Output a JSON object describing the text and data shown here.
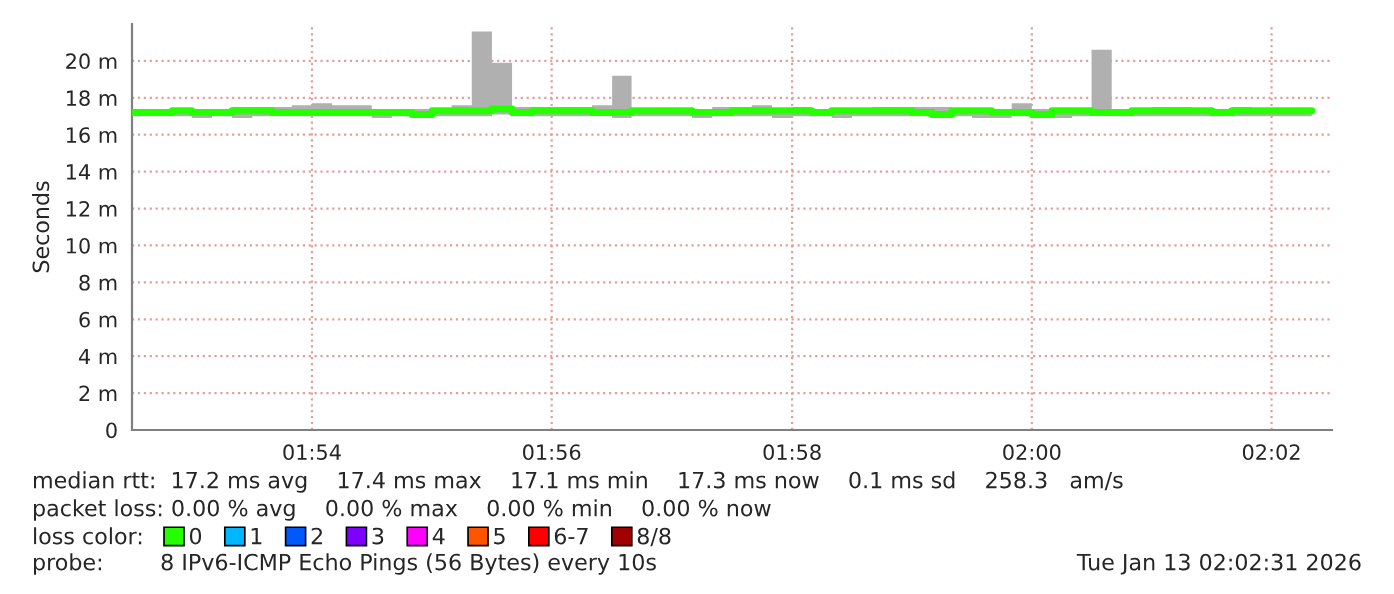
{
  "chart_data": {
    "type": "step",
    "ylabel": "Seconds",
    "legend_title": "loss color:",
    "legend": "bottom",
    "grid": true,
    "xlim": [
      1.875,
      2.0417
    ],
    "ylim": [
      0,
      22
    ],
    "xticks": [
      {
        "value": 1.9,
        "label": "01:54"
      },
      {
        "value": 1.9333,
        "label": "01:56"
      },
      {
        "value": 1.9667,
        "label": "01:58"
      },
      {
        "value": 2.0,
        "label": "02:00"
      },
      {
        "value": 2.0333,
        "label": "02:02"
      }
    ],
    "yticks": [
      0,
      {
        "value": 2,
        "label": "2 m"
      },
      {
        "value": 4,
        "label": "4 m"
      },
      {
        "value": 6,
        "label": "6 m"
      },
      {
        "value": 8,
        "label": "8 m"
      },
      {
        "value": 10,
        "label": "10 m"
      },
      {
        "value": 12,
        "label": "12 m"
      },
      {
        "value": 14,
        "label": "14 m"
      },
      {
        "value": 16,
        "label": "16 m"
      },
      {
        "value": 18,
        "label": "18 m"
      },
      {
        "value": 20,
        "label": "20 m"
      }
    ],
    "x": [
      1.875,
      1.8778,
      1.8806,
      1.8833,
      1.8861,
      1.8889,
      1.8917,
      1.8944,
      1.8972,
      1.9,
      1.9028,
      1.9056,
      1.9083,
      1.9111,
      1.9139,
      1.9167,
      1.9194,
      1.9222,
      1.925,
      1.9278,
      1.9306,
      1.9333,
      1.9361,
      1.9389,
      1.9417,
      1.9444,
      1.9472,
      1.95,
      1.9528,
      1.9556,
      1.9583,
      1.9611,
      1.9639,
      1.9667,
      1.9694,
      1.9722,
      1.975,
      1.9778,
      1.9806,
      1.9833,
      1.9861,
      1.9889,
      1.9917,
      1.9944,
      1.9972,
      2.0,
      2.0028,
      2.0056,
      2.0083,
      2.0111,
      2.0139,
      2.0167,
      2.0194,
      2.0222,
      2.025,
      2.0278,
      2.0306,
      2.0333,
      2.0361,
      2.0389
    ],
    "series": [
      {
        "name": "0",
        "type": "step",
        "color": "#26ff00",
        "lower": [
          17.0,
          17.0,
          17.0,
          16.9,
          17.0,
          16.9,
          17.0,
          17.0,
          17.0,
          17.0,
          17.0,
          17.0,
          16.9,
          17.0,
          17.0,
          17.0,
          17.0,
          17.0,
          17.1,
          17.0,
          17.0,
          17.0,
          17.0,
          17.1,
          16.9,
          17.0,
          17.0,
          17.0,
          16.9,
          17.0,
          17.0,
          17.0,
          16.9,
          17.0,
          17.0,
          16.9,
          17.0,
          17.0,
          17.0,
          17.0,
          17.0,
          17.0,
          16.9,
          16.9,
          17.0,
          17.0,
          16.9,
          17.0,
          17.2,
          17.0,
          17.0,
          17.0,
          17.0,
          17.0,
          17.0,
          17.0,
          17.0,
          17.0,
          17.0,
          17.0
        ],
        "upper": [
          17.3,
          17.4,
          17.4,
          17.4,
          17.4,
          17.5,
          17.5,
          17.5,
          17.6,
          17.7,
          17.6,
          17.6,
          17.4,
          17.4,
          17.4,
          17.3,
          17.6,
          21.6,
          19.9,
          17.5,
          17.5,
          17.5,
          17.5,
          17.6,
          19.2,
          17.4,
          17.4,
          17.4,
          17.3,
          17.5,
          17.5,
          17.6,
          17.4,
          17.5,
          17.4,
          17.3,
          17.4,
          17.5,
          17.5,
          17.5,
          17.5,
          17.4,
          17.4,
          17.4,
          17.7,
          17.4,
          17.4,
          17.4,
          20.6,
          17.3,
          17.4,
          17.5,
          17.5,
          17.4,
          17.3,
          17.5,
          17.4,
          17.3,
          17.4,
          17.3
        ],
        "values": [
          17.2,
          17.2,
          17.3,
          17.2,
          17.2,
          17.3,
          17.3,
          17.2,
          17.2,
          17.2,
          17.2,
          17.2,
          17.2,
          17.2,
          17.1,
          17.3,
          17.3,
          17.3,
          17.4,
          17.2,
          17.3,
          17.3,
          17.3,
          17.2,
          17.2,
          17.3,
          17.3,
          17.3,
          17.2,
          17.2,
          17.3,
          17.3,
          17.3,
          17.3,
          17.2,
          17.3,
          17.3,
          17.3,
          17.3,
          17.2,
          17.1,
          17.3,
          17.3,
          17.2,
          17.2,
          17.1,
          17.3,
          17.3,
          17.2,
          17.2,
          17.3,
          17.3,
          17.3,
          17.3,
          17.2,
          17.3,
          17.3,
          17.3,
          17.3,
          17.3
        ]
      },
      {
        "name": "1",
        "color": "#00b8ff",
        "values": [
          null,
          null,
          null,
          null,
          null,
          null,
          null,
          null,
          null,
          null,
          null,
          null,
          null,
          null,
          null,
          null,
          null,
          null,
          null,
          null,
          null,
          null,
          null,
          null,
          null,
          null,
          null,
          null,
          null,
          null,
          null,
          null,
          null,
          null,
          null,
          null,
          null,
          null,
          null,
          null,
          null,
          null,
          null,
          null,
          null,
          null,
          null,
          null,
          null,
          null,
          null,
          null,
          null,
          null,
          null,
          null,
          null,
          null,
          null,
          null
        ]
      },
      {
        "name": "2",
        "color": "#0059ff",
        "values": [
          null,
          null,
          null,
          null,
          null,
          null,
          null,
          null,
          null,
          null,
          null,
          null,
          null,
          null,
          null,
          null,
          null,
          null,
          null,
          null,
          null,
          null,
          null,
          null,
          null,
          null,
          null,
          null,
          null,
          null,
          null,
          null,
          null,
          null,
          null,
          null,
          null,
          null,
          null,
          null,
          null,
          null,
          null,
          null,
          null,
          null,
          null,
          null,
          null,
          null,
          null,
          null,
          null,
          null,
          null,
          null,
          null,
          null,
          null,
          null
        ]
      },
      {
        "name": "3",
        "color": "#7e00ff",
        "values": [
          null,
          null,
          null,
          null,
          null,
          null,
          null,
          null,
          null,
          null,
          null,
          null,
          null,
          null,
          null,
          null,
          null,
          null,
          null,
          null,
          null,
          null,
          null,
          null,
          null,
          null,
          null,
          null,
          null,
          null,
          null,
          null,
          null,
          null,
          null,
          null,
          null,
          null,
          null,
          null,
          null,
          null,
          null,
          null,
          null,
          null,
          null,
          null,
          null,
          null,
          null,
          null,
          null,
          null,
          null,
          null,
          null,
          null,
          null,
          null
        ]
      },
      {
        "name": "4",
        "color": "#ff00ff",
        "values": [
          null,
          null,
          null,
          null,
          null,
          null,
          null,
          null,
          null,
          null,
          null,
          null,
          null,
          null,
          null,
          null,
          null,
          null,
          null,
          null,
          null,
          null,
          null,
          null,
          null,
          null,
          null,
          null,
          null,
          null,
          null,
          null,
          null,
          null,
          null,
          null,
          null,
          null,
          null,
          null,
          null,
          null,
          null,
          null,
          null,
          null,
          null,
          null,
          null,
          null,
          null,
          null,
          null,
          null,
          null,
          null,
          null,
          null,
          null,
          null
        ]
      },
      {
        "name": "5",
        "color": "#ff5500",
        "values": [
          null,
          null,
          null,
          null,
          null,
          null,
          null,
          null,
          null,
          null,
          null,
          null,
          null,
          null,
          null,
          null,
          null,
          null,
          null,
          null,
          null,
          null,
          null,
          null,
          null,
          null,
          null,
          null,
          null,
          null,
          null,
          null,
          null,
          null,
          null,
          null,
          null,
          null,
          null,
          null,
          null,
          null,
          null,
          null,
          null,
          null,
          null,
          null,
          null,
          null,
          null,
          null,
          null,
          null,
          null,
          null,
          null,
          null,
          null,
          null
        ]
      },
      {
        "name": "6-7",
        "color": "#ff0000",
        "values": [
          null,
          null,
          null,
          null,
          null,
          null,
          null,
          null,
          null,
          null,
          null,
          null,
          null,
          null,
          null,
          null,
          null,
          null,
          null,
          null,
          null,
          null,
          null,
          null,
          null,
          null,
          null,
          null,
          null,
          null,
          null,
          null,
          null,
          null,
          null,
          null,
          null,
          null,
          null,
          null,
          null,
          null,
          null,
          null,
          null,
          null,
          null,
          null,
          null,
          null,
          null,
          null,
          null,
          null,
          null,
          null,
          null,
          null,
          null,
          null
        ]
      },
      {
        "name": "8/8",
        "color": "#a10000",
        "values": [
          null,
          null,
          null,
          null,
          null,
          null,
          null,
          null,
          null,
          null,
          null,
          null,
          null,
          null,
          null,
          null,
          null,
          null,
          null,
          null,
          null,
          null,
          null,
          null,
          null,
          null,
          null,
          null,
          null,
          null,
          null,
          null,
          null,
          null,
          null,
          null,
          null,
          null,
          null,
          null,
          null,
          null,
          null,
          null,
          null,
          null,
          null,
          null,
          null,
          null,
          null,
          null,
          null,
          null,
          null,
          null,
          null,
          null,
          null,
          null
        ]
      }
    ],
    "annotations": [
      "median rtt:  17.2 ms avg    17.4 ms max    17.1 ms min    17.3 ms now    0.1 ms sd    258.3   am/s",
      "packet loss: 0.00 % avg    0.00 % max    0.00 % min    0.00 % now",
      "probe:        8 IPv6-ICMP Echo Pings (56 Bytes) every 10s",
      "Tue Jan 13 02:02:31 2026"
    ]
  }
}
